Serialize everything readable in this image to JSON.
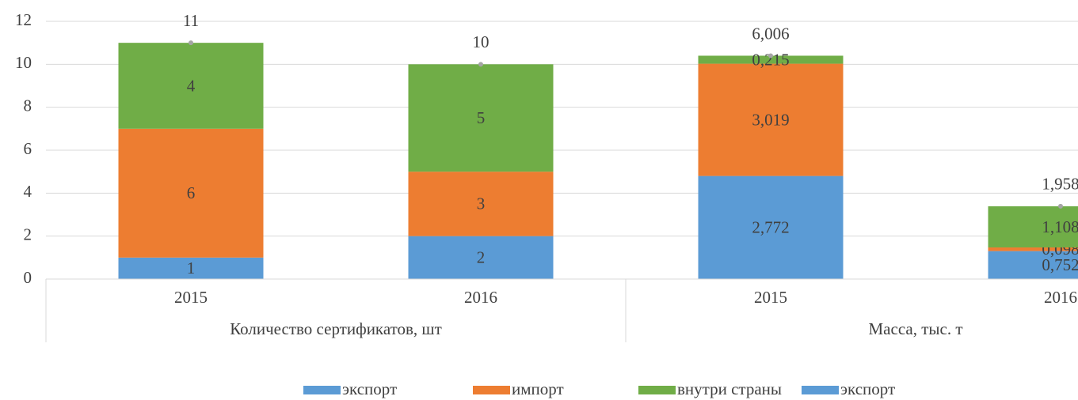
{
  "chart_data": {
    "type": "stacked_bar",
    "categories": [
      "2015",
      "2016",
      "2015",
      "2016"
    ],
    "groups": [
      {
        "name": "Количество сертификатов, шт",
        "size": 2
      },
      {
        "name": "Масса, тыс. т",
        "size": 2
      }
    ],
    "series": [
      {
        "name": "экспорт",
        "color": "#5b9bd5",
        "values": [
          1,
          2,
          null,
          null
        ]
      },
      {
        "name": "импорт",
        "color": "#ed7d31",
        "values": [
          6,
          3,
          null,
          null
        ]
      },
      {
        "name": "внутри страны",
        "color": "#70ad47",
        "values": [
          4,
          5,
          null,
          null
        ]
      },
      {
        "name": "экспорт",
        "color": "#5b9bd5",
        "axis": "y2",
        "values": [
          null,
          null,
          2.772,
          0.752
        ],
        "value_labels": [
          null,
          null,
          "2,772",
          "0,752"
        ]
      },
      {
        "name": "импорт",
        "color": "#ed7d31",
        "axis": "y2",
        "legend": false,
        "values": [
          null,
          null,
          3.019,
          0.098
        ],
        "value_labels": [
          null,
          null,
          "3,019",
          "0,098"
        ]
      },
      {
        "name": "внутри страны",
        "color": "#70ad47",
        "axis": "y2",
        "legend": false,
        "values": [
          null,
          null,
          0.215,
          1.108
        ],
        "value_labels": [
          null,
          null,
          "0,215",
          "1,108"
        ]
      }
    ],
    "totals": [
      11,
      10,
      null,
      null
    ],
    "totals_y2": [
      null,
      null,
      6.006,
      1.958
    ],
    "totals_y2_labels": [
      null,
      null,
      "6,006",
      "1,958"
    ],
    "ylim": [
      0,
      12
    ],
    "yticks": [
      0,
      2,
      4,
      6,
      8,
      10,
      12
    ],
    "y2lim": [
      0,
      6.93
    ],
    "grid": true
  }
}
